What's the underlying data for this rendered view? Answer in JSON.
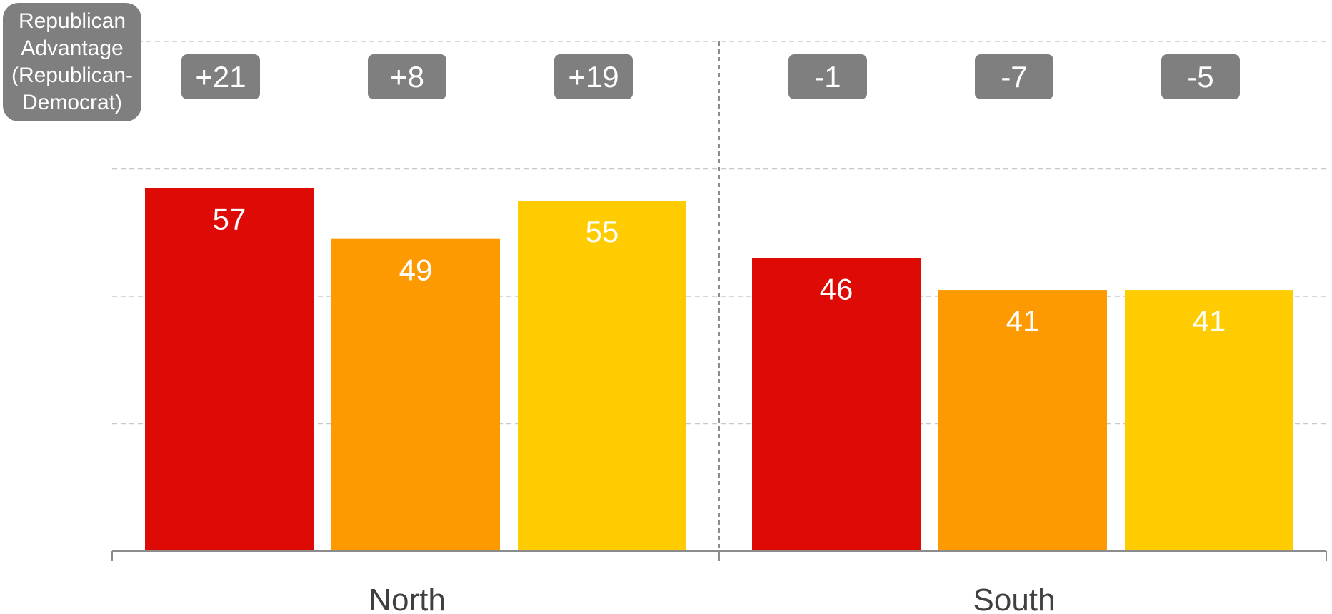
{
  "chart_data": {
    "type": "bar",
    "categories": [
      "North",
      "South"
    ],
    "series": [
      {
        "values": [
          57,
          46
        ]
      },
      {
        "values": [
          49,
          41
        ]
      },
      {
        "values": [
          55,
          41
        ]
      }
    ],
    "advantage_labels": [
      [
        "+21",
        "+8",
        "+19"
      ],
      [
        "-1",
        "-7",
        "-5"
      ]
    ],
    "advantage_title": "Republican\nAdvantage\n(Republican-\nDemocrat)",
    "title": "",
    "xlabel": "",
    "ylabel": "",
    "ylim": [
      0,
      80
    ],
    "grid": true,
    "legend": "none",
    "colors": [
      "#de0a05",
      "#fd9a01",
      "#fecc01"
    ],
    "label_box_color": "#7f7f7f",
    "grid_color": "#c8c8c8",
    "axis_color": "#8c8c8c"
  }
}
